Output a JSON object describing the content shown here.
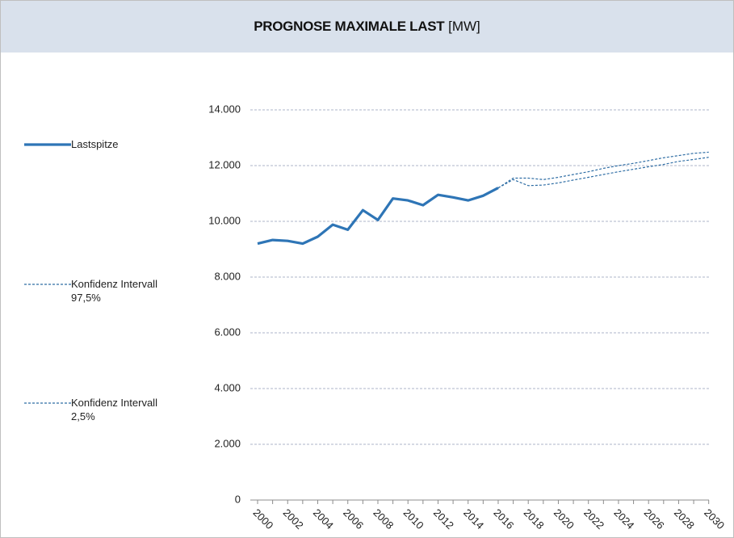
{
  "chart_data": {
    "type": "line",
    "title": "PROGNOSE MAXIMALE LAST",
    "unit": "[MW]",
    "categories": [
      "2000",
      null,
      "2002",
      null,
      "2004",
      null,
      "2006",
      null,
      "2008",
      null,
      "2010",
      null,
      "2012",
      null,
      "2014",
      null,
      "2016",
      null,
      "2018",
      null,
      "2020",
      null,
      "2022",
      null,
      "2024",
      null,
      "2026",
      null,
      "2028",
      null,
      "2030"
    ],
    "series": [
      {
        "name": "Lastspitze",
        "color": "#2e75b6",
        "style": "solid",
        "values": [
          9200,
          9330,
          9300,
          9200,
          9450,
          9880,
          9700,
          10400,
          10050,
          10820,
          10750,
          10580,
          10950,
          10860,
          10750,
          10920,
          11200,
          null,
          null,
          null,
          null,
          null,
          null,
          null,
          null,
          null,
          null,
          null,
          null,
          null,
          null
        ]
      },
      {
        "name": "Konfidenz Intervall 97,5%",
        "color": "#2e6da4",
        "style": "dashed",
        "values": [
          null,
          null,
          null,
          null,
          null,
          null,
          null,
          null,
          null,
          null,
          null,
          null,
          null,
          null,
          null,
          null,
          11200,
          11550,
          11550,
          11500,
          11580,
          11680,
          11780,
          11900,
          12000,
          12080,
          12180,
          12280,
          12360,
          12440,
          12480
        ]
      },
      {
        "name": "Konfidenz Intervall 2,5%",
        "color": "#2e6da4",
        "style": "dashed",
        "values": [
          null,
          null,
          null,
          null,
          null,
          null,
          null,
          null,
          null,
          null,
          null,
          null,
          null,
          null,
          null,
          null,
          11200,
          11500,
          11280,
          11300,
          11380,
          11480,
          11580,
          11680,
          11780,
          11870,
          11960,
          12040,
          12150,
          12220,
          12300
        ]
      }
    ],
    "ylim": [
      0,
      14000
    ],
    "yticks": [
      0,
      {
        "value": 2000,
        "label": "2.000"
      },
      {
        "value": 4000,
        "label": "4.000"
      },
      {
        "value": 6000,
        "label": "6.000"
      },
      {
        "value": 8000,
        "label": "8.000"
      },
      {
        "value": 10000,
        "label": "10.000"
      },
      {
        "value": 12000,
        "label": "12.000"
      },
      {
        "value": 14000,
        "label": "14.000"
      }
    ],
    "grid": true,
    "legend": "left"
  }
}
